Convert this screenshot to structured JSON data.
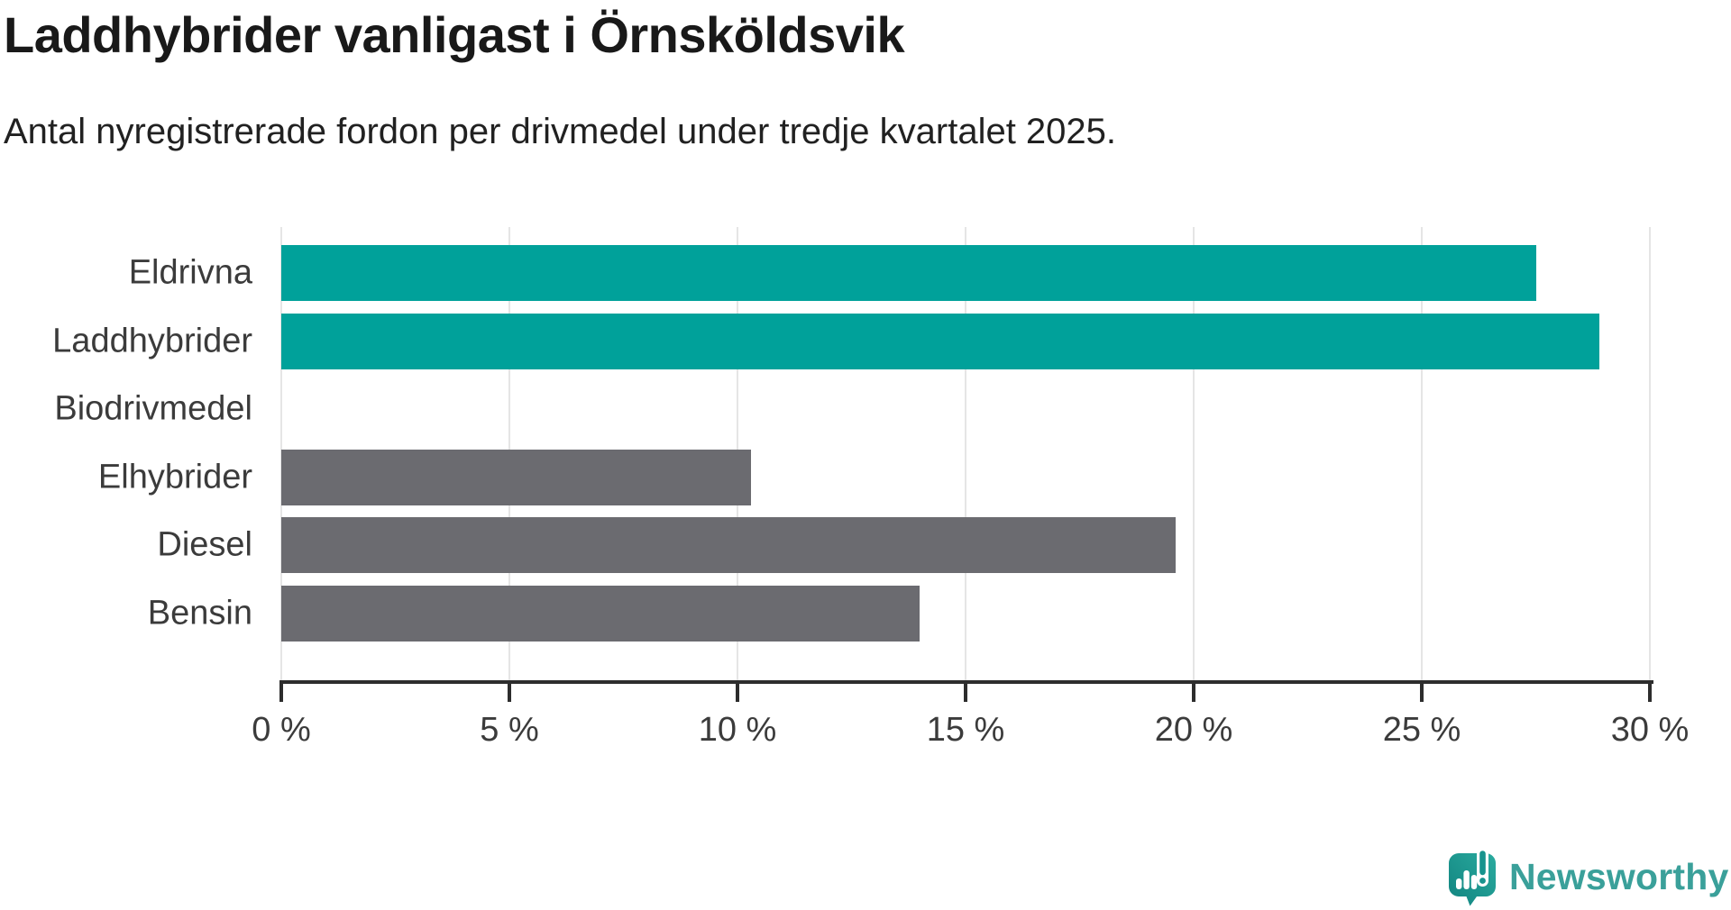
{
  "title": "Laddhybrider vanligast i Örnsköldsvik",
  "subtitle": "Antal nyregistrerade fordon per drivmedel under tredje kvartalet 2025.",
  "chart_data": {
    "type": "bar",
    "orientation": "horizontal",
    "title": "Laddhybrider vanligast i Örnsköldsvik",
    "subtitle": "Antal nyregistrerade fordon per drivmedel under tredje kvartalet 2025.",
    "categories": [
      "Eldrivna",
      "Laddhybrider",
      "Biodrivmedel",
      "Elhybrider",
      "Diesel",
      "Bensin"
    ],
    "values": [
      27.5,
      28.9,
      0,
      10.3,
      19.6,
      14
    ],
    "unit": "%",
    "xlim": [
      0,
      30
    ],
    "x_tick_step": 5,
    "x_tick_labels": [
      "0 %",
      "5 %",
      "10 %",
      "15 %",
      "20 %",
      "25 %",
      "30 %"
    ],
    "grid": true,
    "legend": false,
    "bar_colors": [
      "#00a19a",
      "#00a19a",
      "#6b6b70",
      "#6b6b70",
      "#6b6b70",
      "#6b6b70"
    ]
  },
  "colors": {
    "accent_teal": "#00a19a",
    "bar_gray": "#6b6b70",
    "gridline": "#e5e5e5",
    "axis": "#2d2d2d",
    "text_dark": "#191919",
    "text_label": "#3b3b3b",
    "logo_teal": "#3aa09a"
  },
  "branding": {
    "logo_text": "Newsworthy",
    "logo_icon": "newsworthy-speech-bubble-bar-chart-icon"
  }
}
